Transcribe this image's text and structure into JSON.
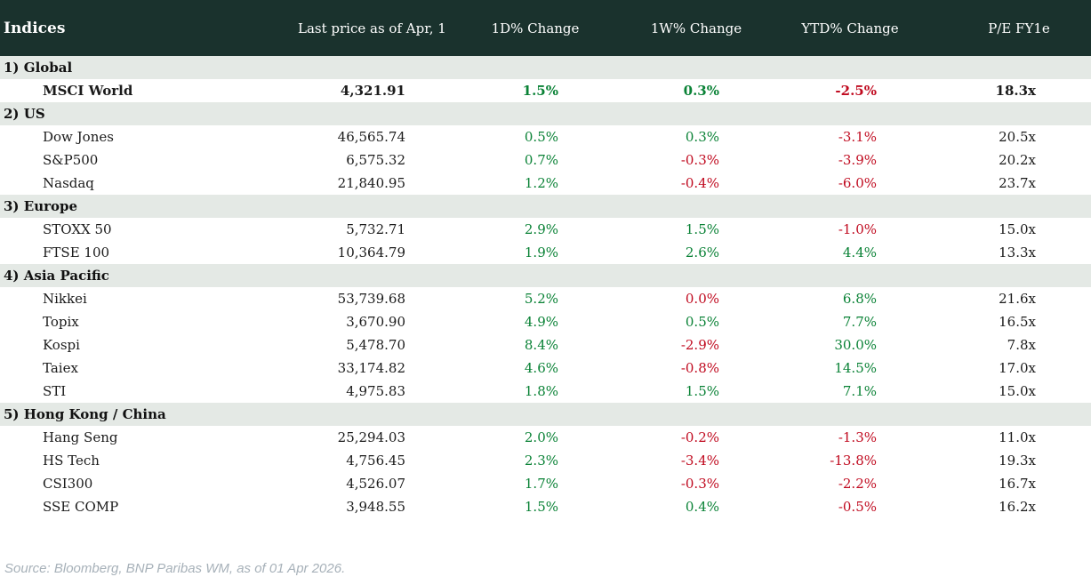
{
  "header": {
    "title": "Indices",
    "columns": [
      "Last price as of Apr, 1",
      "1D% Change",
      "1W% Change",
      "YTD% Change",
      "P/E FY1e"
    ]
  },
  "colors": {
    "header_bg": "#1a322d",
    "section_bg": "#e4e9e5",
    "positive_green": "#0a8236",
    "negative_red": "#c00a1f"
  },
  "chart_data": {
    "type": "table",
    "title": "Indices",
    "columns": [
      "Index",
      "Last price as of Apr, 1",
      "1D% Change",
      "1W% Change",
      "YTD% Change",
      "P/E FY1e"
    ],
    "sections": [
      {
        "label": "1) Global",
        "rows": [
          {
            "name": "MSCI World",
            "price": "4,321.91",
            "changes": [
              {
                "v": "1.5%",
                "dir": "up"
              },
              {
                "v": "0.3%",
                "dir": "up"
              },
              {
                "v": "-2.5%",
                "dir": "down"
              }
            ],
            "pe": "18.3x",
            "bold": true
          }
        ]
      },
      {
        "label": "2) US",
        "rows": [
          {
            "name": "Dow Jones",
            "price": "46,565.74",
            "changes": [
              {
                "v": "0.5%",
                "dir": "up"
              },
              {
                "v": "0.3%",
                "dir": "up"
              },
              {
                "v": "-3.1%",
                "dir": "down"
              }
            ],
            "pe": "20.5x",
            "bold": false
          },
          {
            "name": "S&P500",
            "price": "6,575.32",
            "changes": [
              {
                "v": "0.7%",
                "dir": "up"
              },
              {
                "v": "-0.3%",
                "dir": "down"
              },
              {
                "v": "-3.9%",
                "dir": "down"
              }
            ],
            "pe": "20.2x",
            "bold": false
          },
          {
            "name": "Nasdaq",
            "price": "21,840.95",
            "changes": [
              {
                "v": "1.2%",
                "dir": "up"
              },
              {
                "v": "-0.4%",
                "dir": "down"
              },
              {
                "v": "-6.0%",
                "dir": "down"
              }
            ],
            "pe": "23.7x",
            "bold": false
          }
        ]
      },
      {
        "label": "3) Europe",
        "rows": [
          {
            "name": "STOXX 50",
            "price": "5,732.71",
            "changes": [
              {
                "v": "2.9%",
                "dir": "up"
              },
              {
                "v": "1.5%",
                "dir": "up"
              },
              {
                "v": "-1.0%",
                "dir": "down"
              }
            ],
            "pe": "15.0x",
            "bold": false
          },
          {
            "name": "FTSE 100",
            "price": "10,364.79",
            "changes": [
              {
                "v": "1.9%",
                "dir": "up"
              },
              {
                "v": "2.6%",
                "dir": "up"
              },
              {
                "v": "4.4%",
                "dir": "up"
              }
            ],
            "pe": "13.3x",
            "bold": false
          }
        ]
      },
      {
        "label": "4) Asia Pacific",
        "rows": [
          {
            "name": "Nikkei",
            "price": "53,739.68",
            "changes": [
              {
                "v": "5.2%",
                "dir": "up"
              },
              {
                "v": "0.0%",
                "dir": "down"
              },
              {
                "v": "6.8%",
                "dir": "up"
              }
            ],
            "pe": "21.6x",
            "bold": false
          },
          {
            "name": "Topix",
            "price": "3,670.90",
            "changes": [
              {
                "v": "4.9%",
                "dir": "up"
              },
              {
                "v": "0.5%",
                "dir": "up"
              },
              {
                "v": "7.7%",
                "dir": "up"
              }
            ],
            "pe": "16.5x",
            "bold": false
          },
          {
            "name": "Kospi",
            "price": "5,478.70",
            "changes": [
              {
                "v": "8.4%",
                "dir": "up"
              },
              {
                "v": "-2.9%",
                "dir": "down"
              },
              {
                "v": "30.0%",
                "dir": "up"
              }
            ],
            "pe": "7.8x",
            "bold": false
          },
          {
            "name": "Taiex",
            "price": "33,174.82",
            "changes": [
              {
                "v": "4.6%",
                "dir": "up"
              },
              {
                "v": "-0.8%",
                "dir": "down"
              },
              {
                "v": "14.5%",
                "dir": "up"
              }
            ],
            "pe": "17.0x",
            "bold": false
          },
          {
            "name": "STI",
            "price": "4,975.83",
            "changes": [
              {
                "v": "1.8%",
                "dir": "up"
              },
              {
                "v": "1.5%",
                "dir": "up"
              },
              {
                "v": "7.1%",
                "dir": "up"
              }
            ],
            "pe": "15.0x",
            "bold": false
          }
        ]
      },
      {
        "label": "5) Hong Kong / China",
        "rows": [
          {
            "name": "Hang Seng",
            "price": "25,294.03",
            "changes": [
              {
                "v": "2.0%",
                "dir": "up"
              },
              {
                "v": "-0.2%",
                "dir": "down"
              },
              {
                "v": "-1.3%",
                "dir": "down"
              }
            ],
            "pe": "11.0x",
            "bold": false
          },
          {
            "name": "HS Tech",
            "price": "4,756.45",
            "changes": [
              {
                "v": "2.3%",
                "dir": "up"
              },
              {
                "v": "-3.4%",
                "dir": "down"
              },
              {
                "v": "-13.8%",
                "dir": "down"
              }
            ],
            "pe": "19.3x",
            "bold": false
          },
          {
            "name": "CSI300",
            "price": "4,526.07",
            "changes": [
              {
                "v": "1.7%",
                "dir": "up"
              },
              {
                "v": "-0.3%",
                "dir": "down"
              },
              {
                "v": "-2.2%",
                "dir": "down"
              }
            ],
            "pe": "16.7x",
            "bold": false
          },
          {
            "name": "SSE COMP",
            "price": "3,948.55",
            "changes": [
              {
                "v": "1.5%",
                "dir": "up"
              },
              {
                "v": "0.4%",
                "dir": "up"
              },
              {
                "v": "-0.5%",
                "dir": "down"
              }
            ],
            "pe": "16.2x",
            "bold": false
          }
        ]
      }
    ]
  },
  "footer": {
    "source": "Source: Bloomberg, BNP Paribas WM, as of 01 Apr 2026."
  }
}
